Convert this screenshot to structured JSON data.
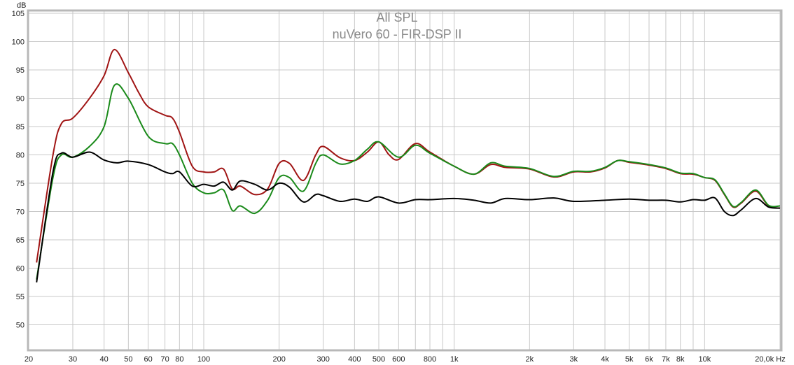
{
  "chart_data": {
    "type": "line",
    "title": "All SPL",
    "subtitle": "nuVero 60 - FIR-DSP II",
    "ylabel": "dB",
    "xlabel": "Hz",
    "xscale": "log",
    "xlim": [
      20,
      20000
    ],
    "ylim": [
      45.5,
      105.5
    ],
    "grid": true,
    "yticks": [
      50,
      55,
      60,
      65,
      70,
      75,
      80,
      85,
      90,
      95,
      100,
      105
    ],
    "xticks": [
      {
        "v": 20,
        "label": "20"
      },
      {
        "v": 30,
        "label": "30"
      },
      {
        "v": 40,
        "label": "40"
      },
      {
        "v": 50,
        "label": "50"
      },
      {
        "v": 60,
        "label": "60"
      },
      {
        "v": 70,
        "label": "70"
      },
      {
        "v": 80,
        "label": "80"
      },
      {
        "v": 90,
        "label": ""
      },
      {
        "v": 100,
        "label": "100"
      },
      {
        "v": 200,
        "label": "200"
      },
      {
        "v": 300,
        "label": "300"
      },
      {
        "v": 400,
        "label": "400"
      },
      {
        "v": 500,
        "label": "500"
      },
      {
        "v": 600,
        "label": "600"
      },
      {
        "v": 700,
        "label": ""
      },
      {
        "v": 800,
        "label": "800"
      },
      {
        "v": 900,
        "label": ""
      },
      {
        "v": 1000,
        "label": "1k"
      },
      {
        "v": 2000,
        "label": "2k"
      },
      {
        "v": 3000,
        "label": "3k"
      },
      {
        "v": 4000,
        "label": "4k"
      },
      {
        "v": 5000,
        "label": "5k"
      },
      {
        "v": 6000,
        "label": "6k"
      },
      {
        "v": 7000,
        "label": "7k"
      },
      {
        "v": 8000,
        "label": "8k"
      },
      {
        "v": 9000,
        "label": ""
      },
      {
        "v": 10000,
        "label": "10k"
      },
      {
        "v": 20000,
        "label": "20,0k Hz"
      }
    ],
    "series": [
      {
        "color": "#a01414",
        "x": [
          21.5,
          25,
          27,
          30,
          35,
          40,
          44,
          50,
          55,
          60,
          70,
          75,
          80,
          90,
          100,
          110,
          120,
          130,
          140,
          160,
          180,
          200,
          220,
          250,
          280,
          300,
          350,
          400,
          450,
          500,
          550,
          600,
          700,
          800,
          1000,
          1200,
          1400,
          1600,
          2000,
          2500,
          3000,
          3500,
          4000,
          4500,
          5000,
          6000,
          7000,
          8000,
          9000,
          10000,
          11000,
          12000,
          13000,
          14000,
          16000,
          18000,
          20000
        ],
        "y": [
          61,
          80,
          85.5,
          86.5,
          90,
          94,
          98.6,
          94.5,
          91,
          88.5,
          87,
          86.5,
          84,
          78,
          77,
          77,
          77.5,
          74,
          74.5,
          73,
          74,
          78.5,
          78.5,
          75.5,
          80,
          81.5,
          79.5,
          79,
          80.5,
          82.3,
          80,
          79.2,
          82,
          80.5,
          78,
          76.6,
          78.3,
          77.8,
          77.5,
          76.1,
          77,
          77,
          77.7,
          79,
          78.7,
          78.2,
          77.6,
          76.7,
          76.6,
          76,
          75.5,
          73,
          70.8,
          71.5,
          73.6,
          71,
          70.6
        ]
      },
      {
        "color": "#1a8a1a",
        "x": [
          21.5,
          25,
          27,
          30,
          35,
          40,
          44,
          50,
          60,
          70,
          75,
          80,
          90,
          100,
          110,
          120,
          130,
          140,
          160,
          180,
          200,
          220,
          250,
          280,
          300,
          350,
          400,
          450,
          500,
          600,
          700,
          800,
          1000,
          1200,
          1400,
          1600,
          2000,
          2500,
          3000,
          3500,
          4000,
          4500,
          5000,
          6000,
          7000,
          8000,
          9000,
          10000,
          11000,
          12000,
          13000,
          14000,
          16000,
          18000,
          20000
        ],
        "y": [
          58,
          76,
          80,
          79.6,
          81.5,
          85,
          92.3,
          90,
          83.3,
          82,
          82,
          80,
          75,
          73.3,
          73.3,
          73.8,
          70.2,
          71,
          69.7,
          72,
          76,
          76,
          73.6,
          78.5,
          80,
          78.4,
          79,
          81,
          82.3,
          79.6,
          81.7,
          80.3,
          78,
          76.6,
          78.6,
          78,
          77.6,
          76.2,
          77.1,
          77.1,
          77.8,
          79,
          78.8,
          78.3,
          77.7,
          76.8,
          76.7,
          76,
          75.6,
          73.1,
          70.9,
          71.6,
          73.8,
          71.1,
          71
        ]
      },
      {
        "color": "#000000",
        "x": [
          21.5,
          25,
          27,
          30,
          35,
          40,
          45,
          50,
          60,
          70,
          75,
          80,
          90,
          100,
          110,
          120,
          130,
          140,
          160,
          180,
          200,
          220,
          250,
          280,
          300,
          350,
          400,
          450,
          500,
          600,
          700,
          800,
          1000,
          1200,
          1400,
          1600,
          2000,
          2500,
          3000,
          4000,
          5000,
          6000,
          7000,
          8000,
          9000,
          10000,
          11000,
          12000,
          13000,
          14000,
          16000,
          18000,
          20000
        ],
        "y": [
          57.5,
          77,
          80.3,
          79.6,
          80.5,
          79.1,
          78.6,
          78.9,
          78.3,
          77,
          76.7,
          77,
          74.5,
          74.8,
          74.5,
          75.2,
          73.8,
          75.4,
          74.8,
          73.8,
          75,
          74.3,
          71.7,
          73,
          72.8,
          71.8,
          72.2,
          71.8,
          72.6,
          71.5,
          72.1,
          72.1,
          72.3,
          72,
          71.5,
          72.3,
          72.1,
          72.4,
          71.8,
          72,
          72.2,
          72,
          72,
          71.7,
          72.1,
          72,
          72.4,
          70,
          69.3,
          70.3,
          72.3,
          70.8,
          70.6
        ]
      }
    ]
  }
}
